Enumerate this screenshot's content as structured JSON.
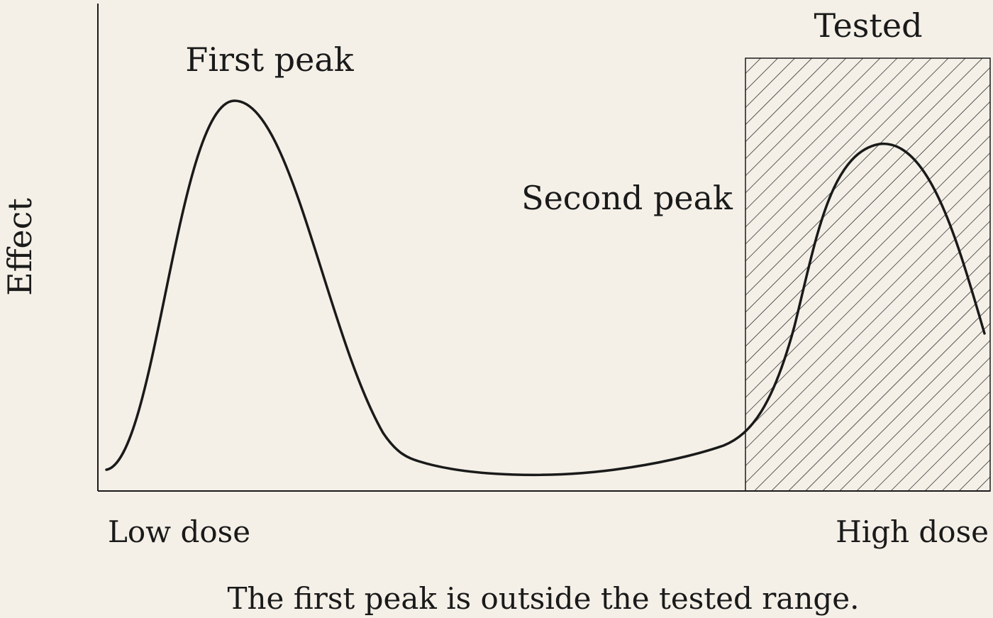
{
  "labels": {
    "y_axis": "Effect",
    "x_low": "Low dose",
    "x_high": "High dose",
    "region": "Tested",
    "peak1": "First peak",
    "peak2": "Second peak",
    "caption": "The first peak is outside the tested range."
  },
  "colors": {
    "background": "#f4f0e8",
    "ink": "#1a1a1a"
  }
}
